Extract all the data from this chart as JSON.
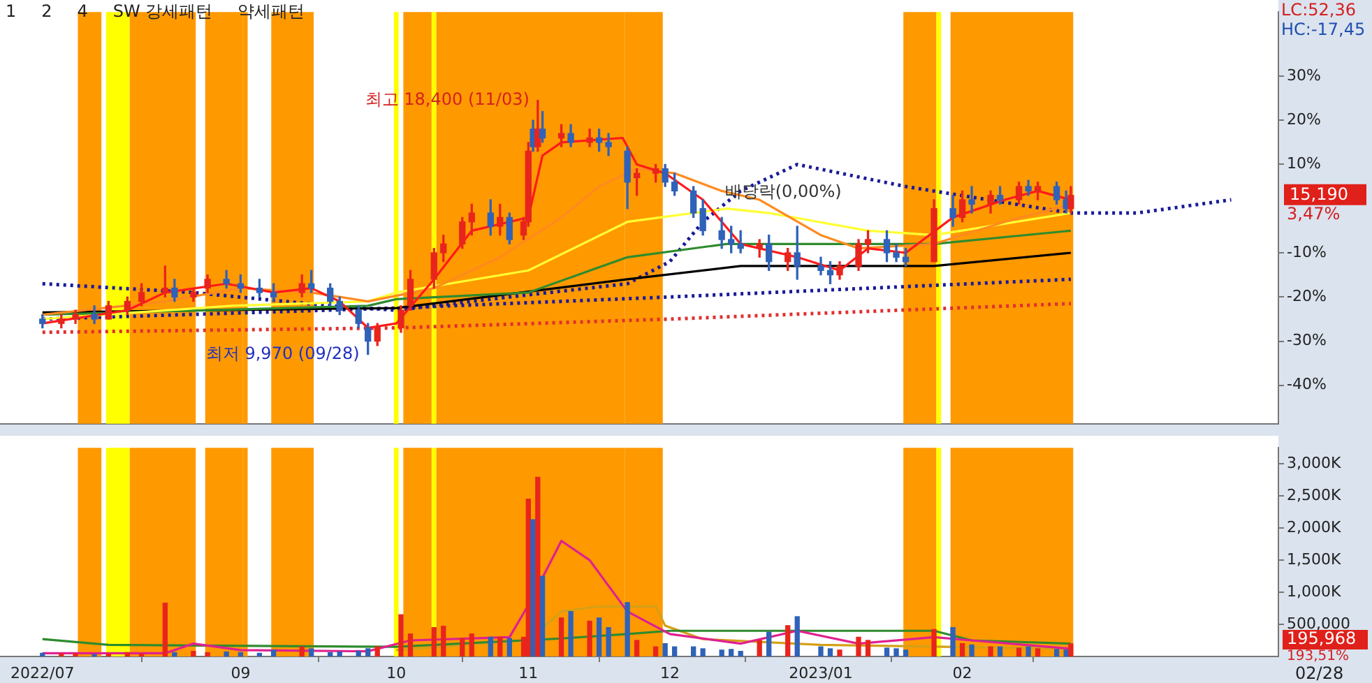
{
  "chart_data": [
    {
      "type": "candlestick",
      "x": [
        "2022-07-21",
        "2022-07-25",
        "2022-07-28",
        "2022-08-01",
        "2022-08-04",
        "2022-08-08",
        "2022-08-11",
        "2022-08-16",
        "2022-08-18",
        "2022-08-22",
        "2022-08-25",
        "2022-08-29",
        "2022-09-01",
        "2022-09-05",
        "2022-09-08",
        "2022-09-14",
        "2022-09-16",
        "2022-09-20",
        "2022-09-22",
        "2022-09-26",
        "2022-09-28",
        "2022-09-30",
        "2022-10-05",
        "2022-10-07",
        "2022-10-12",
        "2022-10-14",
        "2022-10-18",
        "2022-10-20",
        "2022-10-24",
        "2022-10-26",
        "2022-10-28",
        "2022-10-31",
        "2022-11-01",
        "2022-11-02",
        "2022-11-03",
        "2022-11-04",
        "2022-11-08",
        "2022-11-10",
        "2022-11-14",
        "2022-11-16",
        "2022-11-18",
        "2022-11-22",
        "2022-11-24",
        "2022-11-28",
        "2022-11-30",
        "2022-12-02",
        "2022-12-06",
        "2022-12-08",
        "2022-12-12",
        "2022-12-14",
        "2022-12-16",
        "2022-12-20",
        "2022-12-22",
        "2022-12-26",
        "2022-12-28",
        "2023-01-02",
        "2023-01-04",
        "2023-01-06",
        "2023-01-10",
        "2023-01-12",
        "2023-01-16",
        "2023-01-18",
        "2023-01-20",
        "2023-01-26",
        "2023-01-30",
        "2023-02-01",
        "2023-02-03",
        "2023-02-07",
        "2023-02-09",
        "2023-02-13",
        "2023-02-15",
        "2023-02-17",
        "2023-02-21",
        "2023-02-23",
        "2023-02-24"
      ],
      "ohlc": [
        [
          -25,
          -24,
          -27,
          -26
        ],
        [
          -26,
          -24,
          -27,
          -25
        ],
        [
          -25,
          -23,
          -26,
          -24
        ],
        [
          -24,
          -22,
          -26,
          -25
        ],
        [
          -25,
          -21,
          -25,
          -22
        ],
        [
          -23,
          -20,
          -24,
          -21
        ],
        [
          -21,
          -17,
          -22,
          -19
        ],
        [
          -19,
          -13,
          -20,
          -18
        ],
        [
          -18,
          -16,
          -21,
          -20
        ],
        [
          -20,
          -18,
          -21,
          -19
        ],
        [
          -18,
          -15,
          -19,
          -16
        ],
        [
          -16,
          -14,
          -18,
          -17
        ],
        [
          -17,
          -15,
          -19,
          -18
        ],
        [
          -18,
          -16,
          -20,
          -19
        ],
        [
          -19,
          -17,
          -21,
          -20
        ],
        [
          -19,
          -15,
          -20,
          -17
        ],
        [
          -17,
          -14,
          -19,
          -18
        ],
        [
          -18,
          -17,
          -22,
          -21
        ],
        [
          -21,
          -20,
          -24,
          -23
        ],
        [
          -23,
          -22,
          -27,
          -26
        ],
        [
          -27,
          -26,
          -33,
          -30
        ],
        [
          -30,
          -26,
          -31,
          -27
        ],
        [
          -27,
          -22,
          -28,
          -23
        ],
        [
          -22,
          -14,
          -23,
          -16
        ],
        [
          -16,
          -9,
          -18,
          -10
        ],
        [
          -10,
          -6,
          -12,
          -8
        ],
        [
          -8,
          -2,
          -9,
          -3
        ],
        [
          -3,
          1,
          -6,
          -1
        ],
        [
          -1,
          2,
          -6,
          -4
        ],
        [
          -4,
          1,
          -6,
          -2
        ],
        [
          -2,
          -1,
          -8,
          -7
        ],
        [
          -6,
          -2,
          -7,
          -3
        ],
        [
          -3,
          15,
          -4,
          13
        ],
        [
          18,
          20,
          13,
          14
        ],
        [
          14,
          24.5,
          13,
          18
        ],
        [
          18,
          22,
          15,
          16
        ],
        [
          16,
          19,
          14,
          17
        ],
        [
          17,
          19,
          14,
          15
        ],
        [
          15,
          18,
          14,
          16
        ],
        [
          16,
          18,
          13,
          15
        ],
        [
          15,
          17,
          12,
          14
        ],
        [
          13,
          14,
          0,
          6
        ],
        [
          7,
          9,
          3,
          8
        ],
        [
          8,
          10,
          6,
          9
        ],
        [
          9,
          10,
          5,
          6
        ],
        [
          6,
          8,
          3,
          4
        ],
        [
          4,
          5,
          -2,
          -1
        ],
        [
          0,
          2,
          -6,
          -5
        ],
        [
          -5,
          -2,
          -9,
          -7
        ],
        [
          -7,
          -4,
          -10,
          -8
        ],
        [
          -8,
          -5,
          -10,
          -9
        ],
        [
          -9,
          -7,
          -11,
          -8
        ],
        [
          -8,
          -6,
          -14,
          -12
        ],
        [
          -12,
          -9,
          -14,
          -10
        ],
        [
          -10,
          -4,
          -16,
          -13
        ],
        [
          -13,
          -11,
          -15,
          -14
        ],
        [
          -14,
          -12,
          -17,
          -15
        ],
        [
          -15,
          -12,
          -16,
          -13
        ],
        [
          -13,
          -7,
          -14,
          -8
        ],
        [
          -8,
          -5,
          -10,
          -7
        ],
        [
          -7,
          -5,
          -12,
          -10
        ],
        [
          -10,
          -8,
          -12,
          -11
        ],
        [
          -11,
          -9,
          -13,
          -12
        ],
        [
          -12,
          2,
          -12,
          0
        ],
        [
          0,
          3,
          -4,
          -2
        ],
        [
          -2,
          4,
          -3,
          2
        ],
        [
          2,
          5,
          -1,
          1
        ],
        [
          1,
          4,
          -1,
          3
        ],
        [
          3,
          5,
          1,
          2
        ],
        [
          2,
          6,
          1,
          5
        ],
        [
          5,
          6.4,
          3,
          4
        ],
        [
          4,
          6,
          2,
          5
        ],
        [
          5,
          6,
          1,
          2
        ],
        [
          2,
          4,
          -1,
          0
        ],
        [
          0,
          5,
          -1,
          3
        ]
      ],
      "colors": [
        "#2f62b8",
        "#e8251c",
        "#e8251c",
        "#2f62b8",
        "#e8251c",
        "#e8251c",
        "#e8251c",
        "#e8251c",
        "#2f62b8",
        "#e8251c",
        "#e8251c",
        "#2f62b8",
        "#2f62b8",
        "#2f62b8",
        "#2f62b8",
        "#e8251c",
        "#2f62b8",
        "#2f62b8",
        "#2f62b8",
        "#2f62b8",
        "#2f62b8",
        "#e8251c",
        "#e8251c",
        "#e8251c",
        "#e8251c",
        "#e8251c",
        "#e8251c",
        "#e8251c",
        "#2f62b8",
        "#e8251c",
        "#2f62b8",
        "#e8251c",
        "#e8251c",
        "#2f62b8",
        "#e8251c",
        "#2f62b8",
        "#e8251c",
        "#2f62b8",
        "#e8251c",
        "#2f62b8",
        "#2f62b8",
        "#2f62b8",
        "#e8251c",
        "#e8251c",
        "#2f62b8",
        "#2f62b8",
        "#2f62b8",
        "#2f62b8",
        "#2f62b8",
        "#2f62b8",
        "#2f62b8",
        "#e8251c",
        "#2f62b8",
        "#e8251c",
        "#2f62b8",
        "#2f62b8",
        "#2f62b8",
        "#e8251c",
        "#e8251c",
        "#e8251c",
        "#2f62b8",
        "#2f62b8",
        "#2f62b8",
        "#e8251c",
        "#2f62b8",
        "#e8251c",
        "#2f62b8",
        "#e8251c",
        "#2f62b8",
        "#e8251c",
        "#2f62b8",
        "#e8251c",
        "#2f62b8",
        "#2f62b8",
        "#e8251c"
      ],
      "series": [
        {
          "type": "line",
          "color": "#ff1a1a",
          "line_style": "solid",
          "x": [
            "2022-07-21",
            "2022-08-08",
            "2022-08-16",
            "2022-08-29",
            "2022-09-08",
            "2022-09-16",
            "2022-09-22",
            "2022-09-28",
            "2022-10-04",
            "2022-10-12",
            "2022-10-20",
            "2022-10-28",
            "2022-11-01",
            "2022-11-04",
            "2022-11-08",
            "2022-11-21",
            "2022-11-24",
            "2022-11-30",
            "2022-12-08",
            "2022-12-16",
            "2022-12-28",
            "2023-01-06",
            "2023-01-12",
            "2023-01-20",
            "2023-01-30",
            "2023-02-10",
            "2023-02-17",
            "2023-02-24"
          ],
          "values": [
            -26,
            -23,
            -19,
            -17,
            -19,
            -18,
            -21,
            -27,
            -26,
            -16,
            -5,
            -3,
            -2,
            12,
            15,
            16,
            10,
            8,
            2,
            -8,
            -11,
            -14,
            -9,
            -10,
            -2,
            2,
            4,
            2
          ]
        },
        {
          "type": "line",
          "color": "#ff8a1f",
          "line_style": "solid",
          "x": [
            "2022-07-21",
            "2022-08-16",
            "2022-09-01",
            "2022-09-16",
            "2022-09-28",
            "2022-10-12",
            "2022-10-26",
            "2022-11-08",
            "2022-11-16",
            "2022-11-24",
            "2022-12-02",
            "2022-12-12",
            "2022-12-20",
            "2023-01-02",
            "2023-01-10",
            "2023-01-26",
            "2023-02-10",
            "2023-02-24"
          ],
          "values": [
            -24,
            -21,
            -18,
            -19,
            -21,
            -18,
            -11,
            -2,
            5,
            9,
            8,
            4,
            2,
            -6,
            -9,
            -8,
            -3,
            1
          ]
        },
        {
          "type": "line",
          "color": "#ffff33",
          "line_style": "solid",
          "x": [
            "2022-07-21",
            "2022-08-30",
            "2022-09-28",
            "2022-10-04",
            "2022-11-01",
            "2022-11-22",
            "2022-12-13",
            "2022-12-22",
            "2023-01-12",
            "2023-01-26",
            "2023-02-24"
          ],
          "values": [
            -25,
            -22,
            -21,
            -19,
            -14,
            -3,
            0,
            -1,
            -5,
            -6,
            -1
          ]
        },
        {
          "type": "line",
          "color": "#2e8b2e",
          "line_style": "solid",
          "x": [
            "2022-07-21",
            "2022-09-28",
            "2022-10-04",
            "2022-11-01",
            "2022-11-22",
            "2022-12-13",
            "2023-01-26",
            "2023-02-24"
          ],
          "values": [
            -24,
            -22,
            -20.5,
            -19,
            -11,
            -8,
            -8,
            -5
          ]
        },
        {
          "type": "line",
          "color": "#000000",
          "line_style": "solid",
          "x": [
            "2022-07-21",
            "2022-10-04",
            "2022-11-22",
            "2022-12-16",
            "2023-01-26",
            "2023-02-24"
          ],
          "values": [
            -23.5,
            -22.5,
            -16,
            -13,
            -13,
            -10
          ]
        },
        {
          "type": "line",
          "color": "#1a1a99",
          "line_style": "dotted",
          "x": [
            "2022-07-21",
            "2022-08-22",
            "2022-09-20",
            "2022-10-04",
            "2022-10-28",
            "2022-11-22",
            "2022-12-01",
            "2022-12-08",
            "2022-12-16",
            "2022-12-28",
            "2023-01-20",
            "2023-02-24",
            "2023-03-10",
            "2023-03-30"
          ],
          "values": [
            -17,
            -19,
            -22,
            -23,
            -20,
            -17,
            -12,
            -3,
            4,
            10,
            5,
            -1,
            -1,
            2
          ]
        },
        {
          "type": "line",
          "color": "#1a1a99",
          "line_style": "dotted",
          "x": [
            "2022-07-21",
            "2022-10-04",
            "2022-12-01",
            "2023-02-24"
          ],
          "values": [
            -25,
            -22.5,
            -20,
            -16
          ]
        },
        {
          "type": "line",
          "color": "#e03030",
          "line_style": "dotted",
          "x": [
            "2022-07-21",
            "2022-10-04",
            "2022-12-01",
            "2023-02-24"
          ],
          "values": [
            -28,
            -27,
            -25,
            -21.5
          ]
        }
      ],
      "bands": [
        {
          "axis": "x",
          "from": "2022-07-29",
          "to": "2022-08-02",
          "color": "#ff9900"
        },
        {
          "axis": "x",
          "from": "2022-08-04",
          "to": "2022-08-08",
          "color": "#ffff00"
        },
        {
          "axis": "x",
          "from": "2022-08-09",
          "to": "2022-08-22",
          "color": "#ff9900"
        },
        {
          "axis": "x",
          "from": "2022-08-25",
          "to": "2022-09-01",
          "color": "#ff9900"
        },
        {
          "axis": "x",
          "from": "2022-09-02",
          "to": "2022-09-02",
          "color": "#ff9900"
        },
        {
          "axis": "x",
          "from": "2022-09-08",
          "to": "2022-09-16",
          "color": "#ff9900"
        },
        {
          "axis": "x",
          "from": "2022-10-04",
          "to": "2022-10-04",
          "color": "#ffff00"
        },
        {
          "axis": "x",
          "from": "2022-10-06",
          "to": "2022-10-11",
          "color": "#ff9900"
        },
        {
          "axis": "x",
          "from": "2022-10-12",
          "to": "2022-10-12",
          "color": "#ffff00"
        },
        {
          "axis": "x",
          "from": "2022-10-13",
          "to": "2022-11-21",
          "color": "#ff9900"
        },
        {
          "axis": "x",
          "from": "2022-11-22",
          "to": "2022-11-28",
          "color": "#ff9900"
        },
        {
          "axis": "x",
          "from": "2022-11-29",
          "to": "2022-11-29",
          "color": "#ff9900"
        },
        {
          "axis": "x",
          "from": "2023-01-20",
          "to": "2023-01-26",
          "color": "#ff9900"
        },
        {
          "axis": "x",
          "from": "2023-01-27",
          "to": "2023-01-27",
          "color": "#ffff00"
        },
        {
          "axis": "x",
          "from": "2023-01-30",
          "to": "2023-02-24",
          "color": "#ff9900"
        }
      ],
      "xlim": [
        "2022-07-12",
        "2023-04-09"
      ],
      "ylim": [
        -48.7,
        44.5
      ],
      "yticks": [
        {
          "value": 30,
          "label": "30%"
        },
        {
          "value": 20,
          "label": "20%"
        },
        {
          "value": 10,
          "label": "10%"
        },
        {
          "value": -10,
          "label": "-10%"
        },
        {
          "value": -20,
          "label": "-20%"
        },
        {
          "value": -30,
          "label": "-30%"
        },
        {
          "value": -40,
          "label": "-40%"
        }
      ],
      "tick_labels": "y",
      "grid": false,
      "annotations": [
        "1",
        "2",
        "4",
        "SW 강세패턴",
        "약세패턴",
        "LC:52,36",
        "HC:-17,45",
        "15,190",
        "3,47%",
        {
          "text": "최고 18,400 (11/03)",
          "x": "2022-11-03",
          "y": 24.5
        },
        {
          "text": "최저 9,970 (09/28)",
          "x": "2022-09-28",
          "y": -33
        },
        {
          "text": "배당락(0,00%)",
          "x": "2022-12-28",
          "y": -2
        }
      ]
    },
    {
      "type": "bar",
      "x": [
        "2022-07-21",
        "2022-07-25",
        "2022-07-28",
        "2022-08-01",
        "2022-08-04",
        "2022-08-08",
        "2022-08-11",
        "2022-08-16",
        "2022-08-18",
        "2022-08-22",
        "2022-08-25",
        "2022-08-29",
        "2022-09-01",
        "2022-09-05",
        "2022-09-08",
        "2022-09-14",
        "2022-09-16",
        "2022-09-20",
        "2022-09-22",
        "2022-09-26",
        "2022-09-28",
        "2022-09-30",
        "2022-10-05",
        "2022-10-07",
        "2022-10-12",
        "2022-10-14",
        "2022-10-18",
        "2022-10-20",
        "2022-10-24",
        "2022-10-26",
        "2022-10-28",
        "2022-10-31",
        "2022-11-01",
        "2022-11-02",
        "2022-11-03",
        "2022-11-04",
        "2022-11-08",
        "2022-11-10",
        "2022-11-14",
        "2022-11-16",
        "2022-11-18",
        "2022-11-22",
        "2022-11-24",
        "2022-11-28",
        "2022-11-30",
        "2022-12-02",
        "2022-12-06",
        "2022-12-08",
        "2022-12-12",
        "2022-12-14",
        "2022-12-16",
        "2022-12-20",
        "2022-12-22",
        "2022-12-26",
        "2022-12-28",
        "2023-01-02",
        "2023-01-04",
        "2023-01-06",
        "2023-01-10",
        "2023-01-12",
        "2023-01-16",
        "2023-01-18",
        "2023-01-20",
        "2023-01-26",
        "2023-01-30",
        "2023-02-01",
        "2023-02-03",
        "2023-02-07",
        "2023-02-09",
        "2023-02-13",
        "2023-02-15",
        "2023-02-17",
        "2023-02-21",
        "2023-02-23",
        "2023-02-24"
      ],
      "values": [
        50000,
        40000,
        40000,
        30000,
        40000,
        60000,
        40000,
        830000,
        60000,
        80000,
        60000,
        70000,
        60000,
        50000,
        100000,
        150000,
        120000,
        60000,
        70000,
        80000,
        120000,
        150000,
        650000,
        350000,
        450000,
        470000,
        280000,
        350000,
        300000,
        300000,
        280000,
        300000,
        2450000,
        2130000,
        2790000,
        1250000,
        600000,
        700000,
        550000,
        600000,
        450000,
        840000,
        250000,
        150000,
        200000,
        150000,
        150000,
        120000,
        100000,
        110000,
        80000,
        250000,
        380000,
        480000,
        620000,
        150000,
        120000,
        100000,
        300000,
        250000,
        130000,
        120000,
        100000,
        420000,
        450000,
        200000,
        180000,
        150000,
        150000,
        130000,
        150000,
        120000,
        110000,
        100000,
        195968
      ],
      "colors": [
        "#2f62b8",
        "#e8251c",
        "#e8251c",
        "#2f62b8",
        "#e8251c",
        "#e8251c",
        "#e8251c",
        "#e8251c",
        "#2f62b8",
        "#e8251c",
        "#e8251c",
        "#2f62b8",
        "#2f62b8",
        "#2f62b8",
        "#2f62b8",
        "#e8251c",
        "#2f62b8",
        "#2f62b8",
        "#2f62b8",
        "#2f62b8",
        "#2f62b8",
        "#e8251c",
        "#e8251c",
        "#e8251c",
        "#e8251c",
        "#e8251c",
        "#e8251c",
        "#e8251c",
        "#2f62b8",
        "#e8251c",
        "#2f62b8",
        "#e8251c",
        "#e8251c",
        "#2f62b8",
        "#e8251c",
        "#2f62b8",
        "#e8251c",
        "#2f62b8",
        "#e8251c",
        "#2f62b8",
        "#2f62b8",
        "#2f62b8",
        "#e8251c",
        "#e8251c",
        "#2f62b8",
        "#2f62b8",
        "#2f62b8",
        "#2f62b8",
        "#2f62b8",
        "#2f62b8",
        "#2f62b8",
        "#e8251c",
        "#2f62b8",
        "#e8251c",
        "#2f62b8",
        "#2f62b8",
        "#2f62b8",
        "#e8251c",
        "#e8251c",
        "#e8251c",
        "#2f62b8",
        "#2f62b8",
        "#2f62b8",
        "#e8251c",
        "#2f62b8",
        "#e8251c",
        "#2f62b8",
        "#e8251c",
        "#2f62b8",
        "#e8251c",
        "#2f62b8",
        "#e8251c",
        "#2f62b8",
        "#2f62b8",
        "#e8251c"
      ],
      "series": [
        {
          "type": "line",
          "color": "#e0208f",
          "line_style": "solid",
          "x": [
            "2022-07-21",
            "2022-08-16",
            "2022-08-22",
            "2022-09-01",
            "2022-09-28",
            "2022-10-07",
            "2022-10-28",
            "2022-11-01",
            "2022-11-08",
            "2022-11-14",
            "2022-11-22",
            "2022-12-01",
            "2022-12-16",
            "2022-12-28",
            "2023-01-10",
            "2023-01-26",
            "2023-02-03",
            "2023-02-24"
          ],
          "values": [
            50000,
            50000,
            200000,
            100000,
            80000,
            250000,
            300000,
            800000,
            1800000,
            1500000,
            700000,
            350000,
            200000,
            400000,
            200000,
            300000,
            250000,
            120000
          ]
        },
        {
          "type": "line",
          "color": "#2e8b2e",
          "line_style": "solid",
          "x": [
            "2022-07-21",
            "2022-08-04",
            "2022-10-04",
            "2022-11-08",
            "2022-11-22",
            "2022-12-01",
            "2023-01-26",
            "2023-02-03",
            "2023-02-24"
          ],
          "values": [
            270000,
            180000,
            150000,
            280000,
            350000,
            400000,
            400000,
            250000,
            200000
          ]
        },
        {
          "type": "line",
          "color": "#d4a017",
          "line_style": "solid",
          "x": [
            "2022-10-04",
            "2022-11-01",
            "2022-11-08",
            "2022-11-16",
            "2022-11-28",
            "2022-11-30",
            "2022-12-08",
            "2023-01-02",
            "2023-02-24"
          ],
          "values": [
            100000,
            250000,
            700000,
            780000,
            780000,
            480000,
            270000,
            180000,
            120000
          ]
        }
      ],
      "bands": [
        {
          "axis": "x",
          "from": "2022-07-29",
          "to": "2022-08-02",
          "color": "#ff9900"
        },
        {
          "axis": "x",
          "from": "2022-08-04",
          "to": "2022-08-08",
          "color": "#ffff00"
        },
        {
          "axis": "x",
          "from": "2022-08-09",
          "to": "2022-08-22",
          "color": "#ff9900"
        },
        {
          "axis": "x",
          "from": "2022-08-25",
          "to": "2022-09-01",
          "color": "#ff9900"
        },
        {
          "axis": "x",
          "from": "2022-09-02",
          "to": "2022-09-02",
          "color": "#ff9900"
        },
        {
          "axis": "x",
          "from": "2022-09-08",
          "to": "2022-09-16",
          "color": "#ff9900"
        },
        {
          "axis": "x",
          "from": "2022-10-04",
          "to": "2022-10-04",
          "color": "#ffff00"
        },
        {
          "axis": "x",
          "from": "2022-10-06",
          "to": "2022-10-11",
          "color": "#ff9900"
        },
        {
          "axis": "x",
          "from": "2022-10-12",
          "to": "2022-10-12",
          "color": "#ffff00"
        },
        {
          "axis": "x",
          "from": "2022-10-13",
          "to": "2022-11-21",
          "color": "#ff9900"
        },
        {
          "axis": "x",
          "from": "2022-11-22",
          "to": "2022-11-28",
          "color": "#ff9900"
        },
        {
          "axis": "x",
          "from": "2022-11-29",
          "to": "2022-11-29",
          "color": "#ff9900"
        },
        {
          "axis": "x",
          "from": "2023-01-20",
          "to": "2023-01-26",
          "color": "#ff9900"
        },
        {
          "axis": "x",
          "from": "2023-01-27",
          "to": "2023-01-27",
          "color": "#ffff00"
        },
        {
          "axis": "x",
          "from": "2023-01-30",
          "to": "2023-02-24",
          "color": "#ff9900"
        }
      ],
      "xlim": [
        "2022-07-12",
        "2023-04-09"
      ],
      "xticks": [
        {
          "value": "2022-07-21",
          "label": "2022/07"
        },
        {
          "value": "2022-09-01",
          "label": "09"
        },
        {
          "value": "2022-10-04",
          "label": "10"
        },
        {
          "value": "2022-11-01",
          "label": "11"
        },
        {
          "value": "2022-12-01",
          "label": "12"
        },
        {
          "value": "2023-01-02",
          "label": "2023/01"
        },
        {
          "value": "2023-02-01",
          "label": "02"
        }
      ],
      "ylim": [
        0,
        3250000
      ],
      "yticks": [
        {
          "value": 500000,
          "label": "500,000"
        },
        {
          "value": 1000000,
          "label": "1,000K"
        },
        {
          "value": 1500000,
          "label": "1,500K"
        },
        {
          "value": 2000000,
          "label": "2,000K"
        },
        {
          "value": 2500000,
          "label": "2,500K"
        },
        {
          "value": 3000000,
          "label": "3,000K"
        }
      ],
      "grid": false,
      "annotations": [
        "195,968",
        "193,51%",
        "02/28"
      ]
    }
  ]
}
